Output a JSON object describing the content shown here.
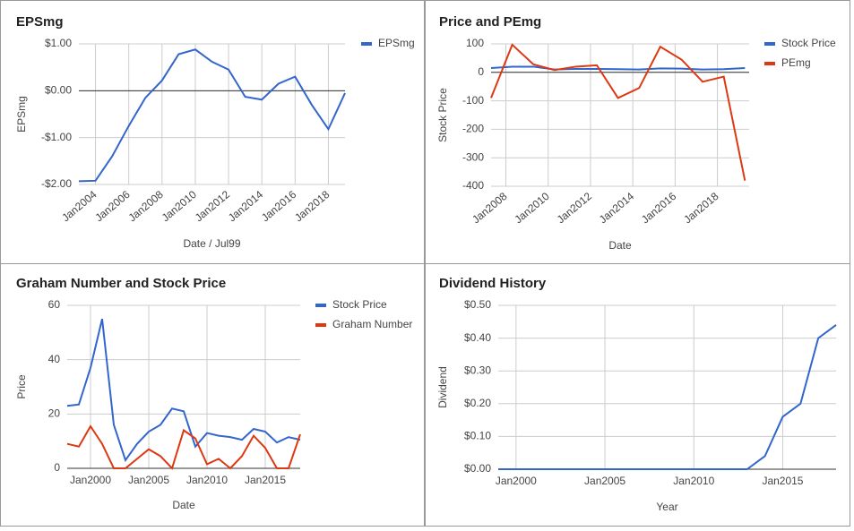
{
  "chart_data": [
    {
      "type": "line",
      "title": "EPSmg",
      "xlabel": "Date / Jul99",
      "ylabel": "EPSmg",
      "legend": "right",
      "grid": true,
      "x": [
        2003,
        2004,
        2005,
        2006,
        2007,
        2008,
        2009,
        2010,
        2011,
        2012,
        2013,
        2014,
        2015,
        2016,
        2017,
        2018,
        2019
      ],
      "series": [
        {
          "name": "EPSmg",
          "color": "#3366cc",
          "values": [
            -1.93,
            -1.92,
            -1.4,
            -0.75,
            -0.15,
            0.22,
            0.78,
            0.88,
            0.62,
            0.45,
            -0.13,
            -0.19,
            0.15,
            0.3,
            -0.3,
            -0.82,
            -0.05
          ]
        }
      ],
      "xlim": [
        2003,
        2019
      ],
      "xticks": [
        {
          "value": 2004,
          "label": "Jan2004"
        },
        {
          "value": 2006,
          "label": "Jan2006"
        },
        {
          "value": 2008,
          "label": "Jan2008"
        },
        {
          "value": 2010,
          "label": "Jan2010"
        },
        {
          "value": 2012,
          "label": "Jan2012"
        },
        {
          "value": 2014,
          "label": "Jan2014"
        },
        {
          "value": 2016,
          "label": "Jan2016"
        },
        {
          "value": 2018,
          "label": "Jan2018"
        }
      ],
      "ylim": [
        -2,
        1
      ],
      "yticks": [
        {
          "value": 1,
          "label": "$1.00"
        },
        {
          "value": 0,
          "label": "$0.00"
        },
        {
          "value": -1,
          "label": "-$1.00"
        },
        {
          "value": -2,
          "label": "-$2.00"
        }
      ]
    },
    {
      "type": "line",
      "title": "Price and PEmg",
      "xlabel": "Date",
      "ylabel": "Stock Price",
      "legend": "right",
      "grid": true,
      "x": [
        2007.3,
        2008.3,
        2009.3,
        2010.3,
        2011.3,
        2012.3,
        2013.3,
        2014.3,
        2015.3,
        2016.3,
        2017.3,
        2018.3,
        2019.3
      ],
      "series": [
        {
          "name": "Stock Price",
          "color": "#3366cc",
          "values": [
            15,
            20,
            20,
            10,
            12,
            12,
            11,
            10,
            14,
            13,
            10,
            11,
            15
          ]
        },
        {
          "name": "PEmg",
          "color": "#dc3912",
          "values": [
            -90,
            97,
            28,
            8,
            20,
            25,
            -90,
            -55,
            90,
            45,
            -33,
            -15,
            -380
          ]
        }
      ],
      "xlim": [
        2007.3,
        2019.5
      ],
      "xticks": [
        {
          "value": 2008,
          "label": "Jan2008"
        },
        {
          "value": 2010,
          "label": "Jan2010"
        },
        {
          "value": 2012,
          "label": "Jan2012"
        },
        {
          "value": 2014,
          "label": "Jan2014"
        },
        {
          "value": 2016,
          "label": "Jan2016"
        },
        {
          "value": 2018,
          "label": "Jan2018"
        }
      ],
      "ylim": [
        -400,
        100
      ],
      "yticks": [
        100,
        0,
        -100,
        -200,
        -300,
        -400
      ]
    },
    {
      "type": "line",
      "title": "Graham Number and Stock Price",
      "xlabel": "Date",
      "ylabel": "Price",
      "legend": "right",
      "grid": true,
      "x": [
        1998,
        1999,
        2000,
        2001,
        2002,
        2003,
        2004,
        2005,
        2006,
        2007,
        2008,
        2009,
        2010,
        2011,
        2012,
        2013,
        2014,
        2015,
        2016,
        2017,
        2018
      ],
      "series": [
        {
          "name": "Stock Price",
          "color": "#3366cc",
          "values": [
            23,
            23.5,
            37,
            55,
            16,
            3,
            9,
            13.5,
            16,
            22,
            21,
            8,
            13,
            12,
            11.5,
            10.5,
            14.5,
            13.5,
            9.5,
            11.5,
            10.5
          ]
        },
        {
          "name": "Graham Number",
          "color": "#dc3912",
          "values": [
            9,
            8,
            15.5,
            9,
            0,
            0,
            3.5,
            7,
            4.5,
            0,
            14,
            11,
            1.5,
            3.5,
            0,
            4.5,
            12,
            7.5,
            0,
            0,
            12.5
          ]
        }
      ],
      "xlim": [
        1998,
        2018
      ],
      "xticks": [
        {
          "value": 2000,
          "label": "Jan2000"
        },
        {
          "value": 2005,
          "label": "Jan2005"
        },
        {
          "value": 2010,
          "label": "Jan2010"
        },
        {
          "value": 2015,
          "label": "Jan2015"
        }
      ],
      "ylim": [
        0,
        60
      ],
      "yticks": [
        0,
        20,
        40,
        60
      ]
    },
    {
      "type": "line",
      "title": "Dividend History",
      "xlabel": "Year",
      "ylabel": "Dividend",
      "grid": true,
      "color": "#3366cc",
      "x": [
        1999,
        2000,
        2001,
        2002,
        2003,
        2004,
        2005,
        2006,
        2007,
        2008,
        2009,
        2010,
        2011,
        2012,
        2013,
        2014,
        2015,
        2016,
        2017,
        2018
      ],
      "values": [
        0,
        0,
        0,
        0,
        0,
        0,
        0,
        0,
        0,
        0,
        0,
        0,
        0,
        0,
        0,
        0.04,
        0.16,
        0.2,
        0.4,
        0.44
      ],
      "xlim": [
        1999,
        2018
      ],
      "xticks": [
        {
          "value": 2000,
          "label": "Jan2000"
        },
        {
          "value": 2005,
          "label": "Jan2005"
        },
        {
          "value": 2010,
          "label": "Jan2010"
        },
        {
          "value": 2015,
          "label": "Jan2015"
        }
      ],
      "ylim": [
        0,
        0.5
      ],
      "yticks": [
        {
          "value": 0,
          "label": "$0.00"
        },
        {
          "value": 0.1,
          "label": "$0.10"
        },
        {
          "value": 0.2,
          "label": "$0.20"
        },
        {
          "value": 0.3,
          "label": "$0.30"
        },
        {
          "value": 0.4,
          "label": "$0.40"
        },
        {
          "value": 0.5,
          "label": "$0.50"
        }
      ]
    }
  ]
}
